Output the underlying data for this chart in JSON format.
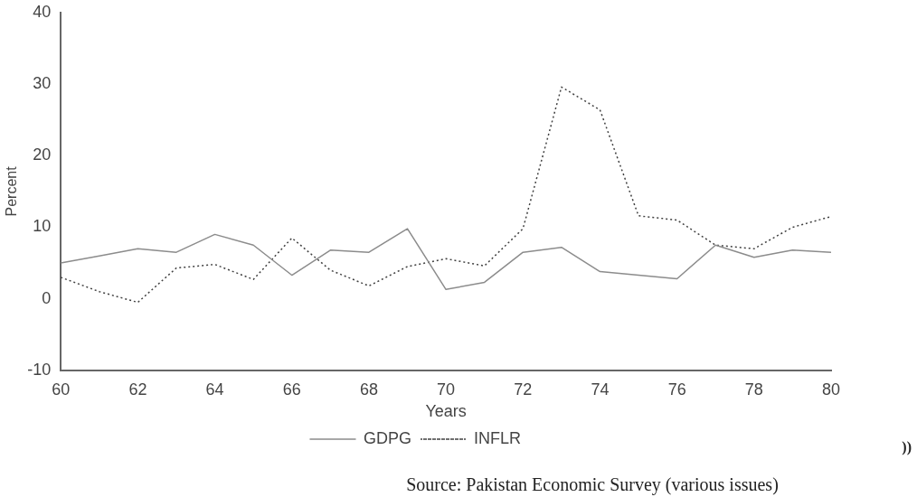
{
  "chart_data": {
    "type": "line",
    "xlabel": "Years",
    "ylabel": "Percent",
    "x": [
      60,
      61,
      62,
      63,
      64,
      65,
      66,
      67,
      68,
      69,
      70,
      71,
      72,
      73,
      74,
      75,
      76,
      77,
      78,
      79,
      80
    ],
    "xlim": [
      60,
      80
    ],
    "xticks": [
      60,
      62,
      64,
      66,
      68,
      70,
      72,
      74,
      76,
      78,
      80
    ],
    "ylim": [
      -10,
      40
    ],
    "yticks": [
      -10,
      0,
      10,
      20,
      30,
      40
    ],
    "series": [
      {
        "name": "GDPG",
        "color": "#8c8c8c",
        "line_style": "solid",
        "values": [
          5,
          6,
          7,
          6.5,
          9,
          7.5,
          3.3,
          6.8,
          6.5,
          9.8,
          1.3,
          2.3,
          6.5,
          7.2,
          3.8,
          3.3,
          2.8,
          7.5,
          5.8,
          6.8,
          6.5
        ]
      },
      {
        "name": "INFLR",
        "color": "#404040",
        "line_style": "dotted",
        "values": [
          3,
          1,
          -0.5,
          4.3,
          4.8,
          2.7,
          8.5,
          4,
          1.8,
          4.5,
          5.6,
          4.6,
          9.8,
          29.6,
          26.4,
          11.6,
          11,
          7.5,
          7,
          10,
          11.5
        ]
      }
    ],
    "grid": false,
    "legend": "bottom",
    "marker": "none",
    "annotations": [
      "))",
      "Source: Pakistan Economic Survey (various issues)"
    ]
  }
}
